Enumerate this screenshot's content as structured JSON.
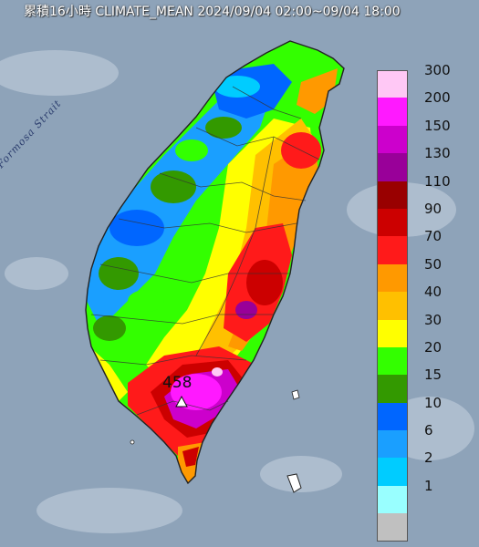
{
  "title": "累積16小時 CLIMATE_MEAN 2024/09/04 02:00~09/04 18:00",
  "sea_label": "Formosa Strait",
  "max_station": {
    "value_label": "458"
  },
  "legend": [
    {
      "label": "300",
      "color": "#ffc8f5"
    },
    {
      "label": "200",
      "color": "#ff19ff"
    },
    {
      "label": "150",
      "color": "#cc00cc"
    },
    {
      "label": "130",
      "color": "#990099"
    },
    {
      "label": "110",
      "color": "#990000"
    },
    {
      "label": "90",
      "color": "#cc0000"
    },
    {
      "label": "70",
      "color": "#ff1a1a"
    },
    {
      "label": "50",
      "color": "#ff9900"
    },
    {
      "label": "40",
      "color": "#ffc000"
    },
    {
      "label": "30",
      "color": "#ffff00"
    },
    {
      "label": "20",
      "color": "#33ff00"
    },
    {
      "label": "15",
      "color": "#339900"
    },
    {
      "label": "10",
      "color": "#0066ff"
    },
    {
      "label": "6",
      "color": "#1a9fff"
    },
    {
      "label": "2",
      "color": "#00ccff"
    },
    {
      "label": "1",
      "color": "#99ffff"
    },
    {
      "label": "",
      "color": "#c0c0c0"
    }
  ]
}
